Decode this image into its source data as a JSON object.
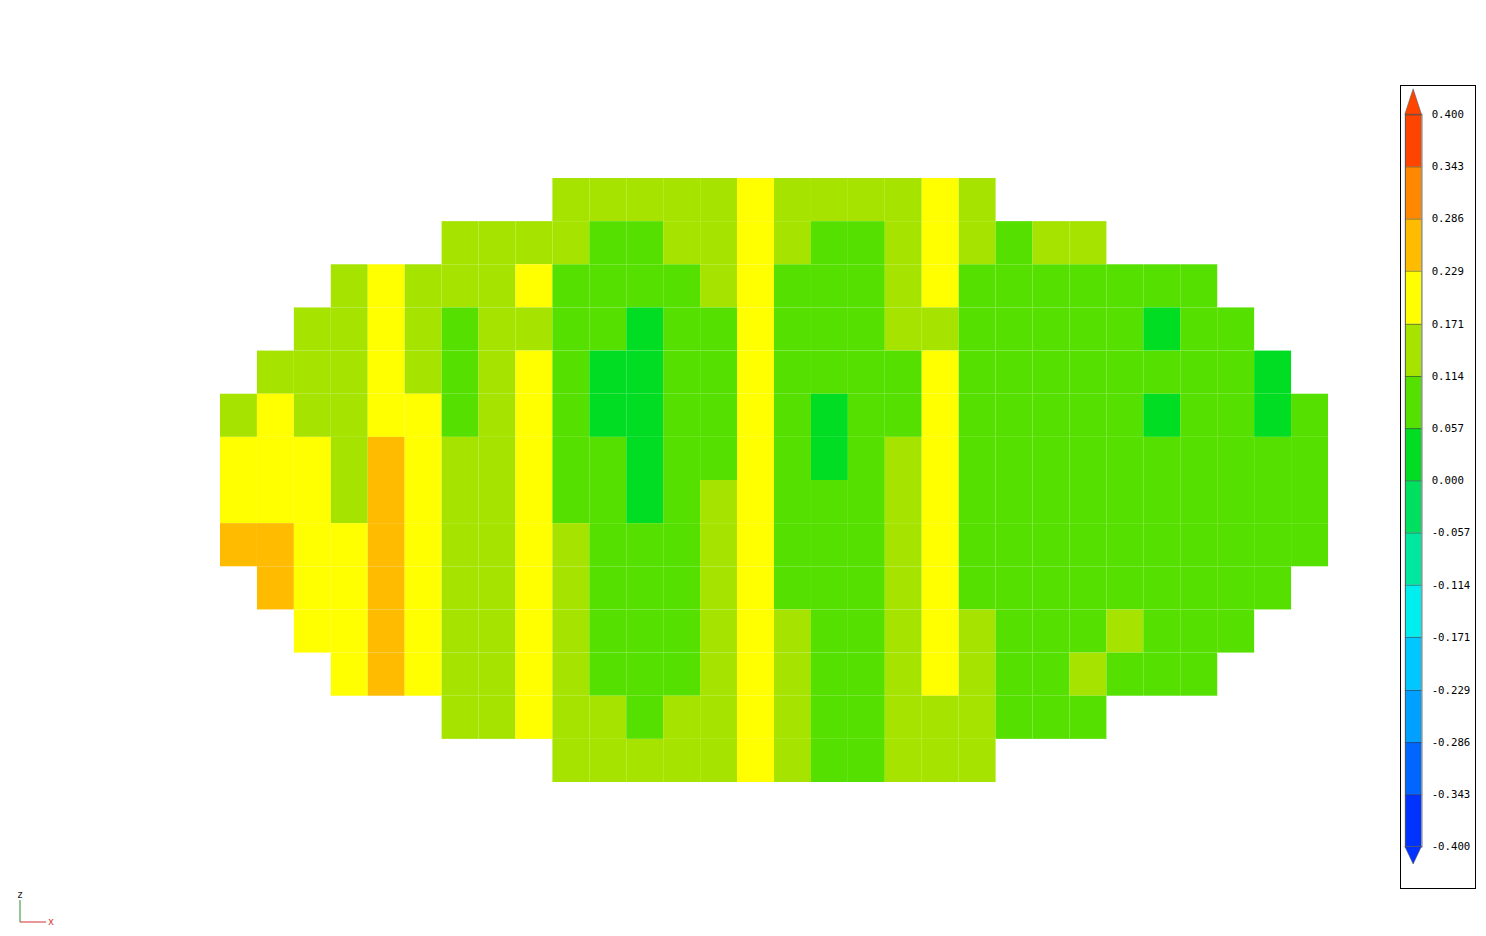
{
  "chart_data": {
    "type": "heatmap",
    "tick_labels": false,
    "xlabel": "x",
    "ylabel": "z",
    "cells": [
      [
        null,
        null,
        null,
        null,
        null,
        null,
        null,
        null,
        null,
        0.14,
        0.12,
        0.13,
        0.15,
        0.16,
        0.2,
        0.15,
        0.13,
        0.14,
        0.16,
        0.19,
        0.14,
        null,
        null,
        null,
        null,
        null,
        null,
        null,
        null,
        null
      ],
      [
        null,
        null,
        null,
        null,
        null,
        null,
        0.14,
        0.15,
        0.17,
        0.12,
        0.09,
        0.1,
        0.12,
        0.13,
        0.21,
        0.12,
        0.1,
        0.11,
        0.14,
        0.19,
        0.12,
        0.11,
        0.12,
        0.13,
        null,
        null,
        null,
        null,
        null,
        null
      ],
      [
        null,
        null,
        null,
        0.15,
        0.2,
        0.17,
        0.12,
        0.13,
        0.18,
        0.1,
        0.08,
        0.06,
        0.1,
        0.12,
        0.22,
        0.1,
        0.08,
        0.08,
        0.13,
        0.18,
        0.09,
        0.08,
        0.07,
        0.1,
        0.11,
        0.08,
        0.1,
        null,
        null,
        null
      ],
      [
        null,
        null,
        0.16,
        0.13,
        0.2,
        0.16,
        0.1,
        0.12,
        0.17,
        0.09,
        0.06,
        0.05,
        0.08,
        0.11,
        0.2,
        0.09,
        0.06,
        0.07,
        0.12,
        0.17,
        0.08,
        0.07,
        0.06,
        0.08,
        0.09,
        0.05,
        0.07,
        0.06,
        null,
        null
      ],
      [
        null,
        0.17,
        0.17,
        0.14,
        0.21,
        0.17,
        0.11,
        0.12,
        0.18,
        0.1,
        0.05,
        0.04,
        0.07,
        0.11,
        0.19,
        0.09,
        0.06,
        0.07,
        0.11,
        0.18,
        0.09,
        0.07,
        0.06,
        0.08,
        0.1,
        0.06,
        0.08,
        0.06,
        0.05,
        null
      ],
      [
        0.16,
        0.18,
        0.17,
        0.14,
        0.22,
        0.18,
        0.11,
        0.12,
        0.18,
        0.1,
        0.05,
        0.03,
        0.06,
        0.1,
        0.19,
        0.08,
        0.05,
        0.06,
        0.11,
        0.18,
        0.09,
        0.08,
        0.06,
        0.08,
        0.09,
        0.05,
        0.08,
        0.07,
        0.05,
        0.06
      ],
      [
        0.18,
        0.2,
        0.19,
        0.15,
        0.23,
        0.19,
        0.12,
        0.13,
        0.19,
        0.1,
        0.06,
        0.04,
        0.07,
        0.11,
        0.2,
        0.09,
        0.05,
        0.07,
        0.12,
        0.18,
        0.1,
        0.08,
        0.07,
        0.09,
        0.1,
        0.06,
        0.09,
        0.07,
        0.06,
        0.07
      ],
      [
        0.21,
        0.22,
        0.2,
        0.17,
        0.24,
        0.2,
        0.13,
        0.13,
        0.19,
        0.11,
        0.06,
        0.05,
        0.07,
        0.12,
        0.21,
        0.1,
        0.06,
        0.08,
        0.12,
        0.19,
        0.1,
        0.09,
        0.07,
        0.09,
        0.1,
        0.07,
        0.08,
        0.07,
        0.06,
        0.06
      ],
      [
        0.23,
        0.24,
        0.21,
        0.18,
        0.25,
        0.21,
        0.14,
        0.14,
        0.2,
        0.12,
        0.07,
        0.06,
        0.08,
        0.12,
        0.21,
        0.1,
        0.06,
        0.08,
        0.13,
        0.19,
        0.11,
        0.09,
        0.08,
        0.1,
        0.11,
        0.07,
        0.09,
        0.08,
        0.06,
        0.07
      ],
      [
        null,
        0.24,
        0.22,
        0.2,
        0.25,
        0.22,
        0.15,
        0.15,
        0.2,
        0.13,
        0.08,
        0.07,
        0.09,
        0.13,
        0.21,
        0.11,
        0.07,
        0.09,
        0.13,
        0.19,
        0.11,
        0.1,
        0.08,
        0.1,
        0.11,
        0.08,
        0.1,
        0.09,
        0.07,
        null
      ],
      [
        null,
        null,
        0.22,
        0.21,
        0.24,
        0.21,
        0.16,
        0.16,
        0.2,
        0.14,
        0.09,
        0.08,
        0.1,
        0.14,
        0.21,
        0.12,
        0.08,
        0.1,
        0.14,
        0.19,
        0.12,
        0.1,
        0.09,
        0.11,
        0.12,
        0.09,
        0.1,
        0.08,
        null,
        null
      ],
      [
        null,
        null,
        null,
        0.21,
        0.23,
        0.2,
        0.16,
        0.16,
        0.19,
        0.14,
        0.1,
        0.09,
        0.11,
        0.14,
        0.2,
        0.12,
        0.09,
        0.1,
        0.14,
        0.18,
        0.12,
        0.11,
        0.1,
        0.12,
        0.11,
        0.09,
        0.1,
        null,
        null,
        null
      ],
      [
        null,
        null,
        null,
        null,
        null,
        null,
        0.16,
        0.17,
        0.19,
        0.15,
        0.12,
        0.11,
        0.12,
        0.15,
        0.2,
        0.13,
        0.1,
        0.11,
        0.14,
        0.17,
        0.12,
        0.11,
        0.1,
        0.11,
        null,
        null,
        null,
        null,
        null,
        null
      ],
      [
        null,
        null,
        null,
        null,
        null,
        null,
        null,
        null,
        null,
        0.14,
        0.12,
        0.12,
        0.13,
        0.14,
        0.18,
        0.13,
        0.11,
        0.11,
        0.13,
        0.15,
        0.12,
        null,
        null,
        null,
        null,
        null,
        null,
        null,
        null,
        null
      ]
    ],
    "colorbar": {
      "range": [
        -0.4,
        0.4
      ],
      "ticks": [
        {
          "value": -0.4,
          "label": "-0.400"
        },
        {
          "value": -0.343,
          "label": "-0.343"
        },
        {
          "value": -0.286,
          "label": "-0.286"
        },
        {
          "value": -0.229,
          "label": "-0.229"
        },
        {
          "value": -0.171,
          "label": "-0.171"
        },
        {
          "value": -0.114,
          "label": "-0.114"
        },
        {
          "value": -0.057,
          "label": "-0.057"
        },
        {
          "value": 0,
          "label": "0.000"
        },
        {
          "value": 0.057,
          "label": "0.057"
        },
        {
          "value": 0.114,
          "label": "0.114"
        },
        {
          "value": 0.171,
          "label": "0.171"
        },
        {
          "value": 0.229,
          "label": "0.229"
        },
        {
          "value": 0.286,
          "label": "0.286"
        },
        {
          "value": 0.343,
          "label": "0.343"
        },
        {
          "value": 0.4,
          "label": "0.400"
        }
      ],
      "colors": [
        "#0033ff",
        "#0066ff",
        "#00a0ff",
        "#00c8ff",
        "#00eeee",
        "#00e8a0",
        "#00e060",
        "#00dd22",
        "#55e000",
        "#a6e400",
        "#ffff00",
        "#ffbb00",
        "#ff8800",
        "#ff4400"
      ]
    }
  }
}
